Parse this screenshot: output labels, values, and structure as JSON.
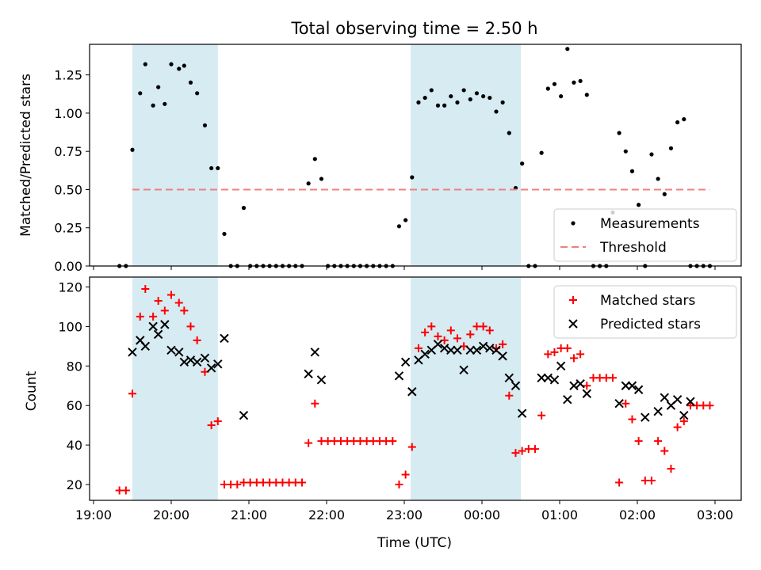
{
  "chart_data": [
    {
      "type": "scatter",
      "title": "Total observing time = 2.50 h",
      "xlabel": "",
      "ylabel": "Matched/Predicted stars",
      "ylim": [
        0,
        1.45
      ],
      "yticks": [
        0.0,
        0.25,
        0.5,
        0.75,
        1.0,
        1.25
      ],
      "ytick_labels": [
        "0.00",
        "0.25",
        "0.50",
        "0.75",
        "1.00",
        "1.25"
      ],
      "shaded_intervals": [
        [
          "19:30",
          "20:36"
        ],
        [
          "23:05",
          "00:30"
        ]
      ],
      "legend_position": "lower right",
      "series": [
        {
          "name": "Measurements",
          "marker": "dot",
          "color": "#000000",
          "points": [
            [
              "19:20",
              0.0
            ],
            [
              "19:25",
              0.0
            ],
            [
              "19:30",
              0.76
            ],
            [
              "19:36",
              1.13
            ],
            [
              "19:40",
              1.32
            ],
            [
              "19:46",
              1.05
            ],
            [
              "19:50",
              1.17
            ],
            [
              "19:55",
              1.06
            ],
            [
              "20:00",
              1.32
            ],
            [
              "20:06",
              1.29
            ],
            [
              "20:10",
              1.31
            ],
            [
              "20:15",
              1.2
            ],
            [
              "20:20",
              1.13
            ],
            [
              "20:26",
              0.92
            ],
            [
              "20:31",
              0.64
            ],
            [
              "20:36",
              0.64
            ],
            [
              "20:41",
              0.21
            ],
            [
              "20:46",
              0.0
            ],
            [
              "20:51",
              0.0
            ],
            [
              "20:56",
              0.38
            ],
            [
              "21:01",
              0.0
            ],
            [
              "21:06",
              0.0
            ],
            [
              "21:11",
              0.0
            ],
            [
              "21:16",
              0.0
            ],
            [
              "21:21",
              0.0
            ],
            [
              "21:26",
              0.0
            ],
            [
              "21:31",
              0.0
            ],
            [
              "21:36",
              0.0
            ],
            [
              "21:41",
              0.0
            ],
            [
              "21:46",
              0.54
            ],
            [
              "21:51",
              0.7
            ],
            [
              "21:56",
              0.57
            ],
            [
              "22:01",
              0.0
            ],
            [
              "22:06",
              0.0
            ],
            [
              "22:11",
              0.0
            ],
            [
              "22:16",
              0.0
            ],
            [
              "22:21",
              0.0
            ],
            [
              "22:26",
              0.0
            ],
            [
              "22:31",
              0.0
            ],
            [
              "22:36",
              0.0
            ],
            [
              "22:41",
              0.0
            ],
            [
              "22:46",
              0.0
            ],
            [
              "22:51",
              0.0
            ],
            [
              "22:56",
              0.26
            ],
            [
              "23:01",
              0.3
            ],
            [
              "23:06",
              0.58
            ],
            [
              "23:11",
              1.07
            ],
            [
              "23:16",
              1.1
            ],
            [
              "23:21",
              1.15
            ],
            [
              "23:26",
              1.05
            ],
            [
              "23:31",
              1.05
            ],
            [
              "23:36",
              1.11
            ],
            [
              "23:41",
              1.07
            ],
            [
              "23:46",
              1.15
            ],
            [
              "23:51",
              1.09
            ],
            [
              "23:56",
              1.13
            ],
            [
              "00:01",
              1.11
            ],
            [
              "00:06",
              1.1
            ],
            [
              "00:11",
              1.01
            ],
            [
              "00:16",
              1.07
            ],
            [
              "00:21",
              0.87
            ],
            [
              "00:26",
              0.51
            ],
            [
              "00:31",
              0.67
            ],
            [
              "00:36",
              0.0
            ],
            [
              "00:41",
              0.0
            ],
            [
              "00:46",
              0.74
            ],
            [
              "00:51",
              1.16
            ],
            [
              "00:56",
              1.19
            ],
            [
              "01:01",
              1.11
            ],
            [
              "01:06",
              1.42
            ],
            [
              "01:11",
              1.2
            ],
            [
              "01:16",
              1.21
            ],
            [
              "01:21",
              1.12
            ],
            [
              "01:26",
              0.0
            ],
            [
              "01:31",
              0.0
            ],
            [
              "01:36",
              0.0
            ],
            [
              "01:41",
              0.35
            ],
            [
              "01:46",
              0.87
            ],
            [
              "01:51",
              0.75
            ],
            [
              "01:56",
              0.62
            ],
            [
              "02:01",
              0.4
            ],
            [
              "02:06",
              0.0
            ],
            [
              "02:11",
              0.73
            ],
            [
              "02:16",
              0.57
            ],
            [
              "02:21",
              0.47
            ],
            [
              "02:26",
              0.77
            ],
            [
              "02:31",
              0.94
            ],
            [
              "02:36",
              0.96
            ],
            [
              "02:41",
              0.0
            ],
            [
              "02:46",
              0.0
            ],
            [
              "02:51",
              0.0
            ],
            [
              "02:56",
              0.0
            ]
          ]
        },
        {
          "name": "Threshold",
          "marker": "dashed-line",
          "color": "#f08080",
          "points": [
            [
              "19:30",
              0.5
            ],
            [
              "02:56",
              0.5
            ]
          ]
        }
      ]
    },
    {
      "type": "scatter",
      "title": "",
      "xlabel": "Time (UTC)",
      "ylabel": "Count",
      "ylim": [
        12,
        125
      ],
      "yticks": [
        20,
        40,
        60,
        80,
        100,
        120
      ],
      "ytick_labels": [
        "20",
        "40",
        "60",
        "80",
        "100",
        "120"
      ],
      "xticks": [
        "19:00",
        "20:00",
        "21:00",
        "22:00",
        "23:00",
        "00:00",
        "01:00",
        "02:00",
        "03:00"
      ],
      "shaded_intervals": [
        [
          "19:30",
          "20:36"
        ],
        [
          "23:05",
          "00:30"
        ]
      ],
      "legend_position": "upper right",
      "series": [
        {
          "name": "Matched stars",
          "marker": "plus",
          "color": "#ff0000",
          "points": [
            [
              "19:20",
              17
            ],
            [
              "19:25",
              17
            ],
            [
              "19:30",
              66
            ],
            [
              "19:36",
              105
            ],
            [
              "19:40",
              119
            ],
            [
              "19:46",
              105
            ],
            [
              "19:50",
              113
            ],
            [
              "19:55",
              108
            ],
            [
              "20:00",
              116
            ],
            [
              "20:06",
              112
            ],
            [
              "20:10",
              108
            ],
            [
              "20:15",
              100
            ],
            [
              "20:20",
              93
            ],
            [
              "20:26",
              77
            ],
            [
              "20:31",
              50
            ],
            [
              "20:36",
              52
            ],
            [
              "20:41",
              20
            ],
            [
              "20:46",
              20
            ],
            [
              "20:51",
              20
            ],
            [
              "20:56",
              21
            ],
            [
              "21:01",
              21
            ],
            [
              "21:06",
              21
            ],
            [
              "21:11",
              21
            ],
            [
              "21:16",
              21
            ],
            [
              "21:21",
              21
            ],
            [
              "21:26",
              21
            ],
            [
              "21:31",
              21
            ],
            [
              "21:36",
              21
            ],
            [
              "21:41",
              21
            ],
            [
              "21:46",
              41
            ],
            [
              "21:51",
              61
            ],
            [
              "21:56",
              42
            ],
            [
              "22:01",
              42
            ],
            [
              "22:06",
              42
            ],
            [
              "22:11",
              42
            ],
            [
              "22:16",
              42
            ],
            [
              "22:21",
              42
            ],
            [
              "22:26",
              42
            ],
            [
              "22:31",
              42
            ],
            [
              "22:36",
              42
            ],
            [
              "22:41",
              42
            ],
            [
              "22:46",
              42
            ],
            [
              "22:51",
              42
            ],
            [
              "22:56",
              20
            ],
            [
              "23:01",
              25
            ],
            [
              "23:06",
              39
            ],
            [
              "23:11",
              89
            ],
            [
              "23:16",
              97
            ],
            [
              "23:21",
              100
            ],
            [
              "23:26",
              95
            ],
            [
              "23:31",
              93
            ],
            [
              "23:36",
              98
            ],
            [
              "23:41",
              94
            ],
            [
              "23:46",
              90
            ],
            [
              "23:51",
              96
            ],
            [
              "23:56",
              100
            ],
            [
              "00:01",
              100
            ],
            [
              "00:06",
              98
            ],
            [
              "00:11",
              89
            ],
            [
              "00:16",
              91
            ],
            [
              "00:21",
              65
            ],
            [
              "00:26",
              36
            ],
            [
              "00:31",
              37
            ],
            [
              "00:36",
              38
            ],
            [
              "00:41",
              38
            ],
            [
              "00:46",
              55
            ],
            [
              "00:51",
              86
            ],
            [
              "00:56",
              87
            ],
            [
              "01:01",
              89
            ],
            [
              "01:06",
              89
            ],
            [
              "01:11",
              84
            ],
            [
              "01:16",
              86
            ],
            [
              "01:21",
              70
            ],
            [
              "01:26",
              74
            ],
            [
              "01:31",
              74
            ],
            [
              "01:36",
              74
            ],
            [
              "01:41",
              74
            ],
            [
              "01:46",
              21
            ],
            [
              "01:51",
              61
            ],
            [
              "01:56",
              53
            ],
            [
              "02:01",
              42
            ],
            [
              "02:06",
              22
            ],
            [
              "02:11",
              22
            ],
            [
              "02:16",
              42
            ],
            [
              "02:21",
              37
            ],
            [
              "02:26",
              28
            ],
            [
              "02:31",
              49
            ],
            [
              "02:36",
              52
            ],
            [
              "02:41",
              60
            ],
            [
              "02:46",
              60
            ],
            [
              "02:51",
              60
            ],
            [
              "02:56",
              60
            ]
          ]
        },
        {
          "name": "Predicted stars",
          "marker": "cross",
          "color": "#000000",
          "points": [
            [
              "19:30",
              87
            ],
            [
              "19:36",
              93
            ],
            [
              "19:40",
              90
            ],
            [
              "19:46",
              100
            ],
            [
              "19:50",
              96
            ],
            [
              "19:55",
              101
            ],
            [
              "20:00",
              88
            ],
            [
              "20:06",
              87
            ],
            [
              "20:10",
              82
            ],
            [
              "20:15",
              83
            ],
            [
              "20:20",
              82
            ],
            [
              "20:26",
              84
            ],
            [
              "20:31",
              79
            ],
            [
              "20:36",
              81
            ],
            [
              "20:41",
              94
            ],
            [
              "20:56",
              55
            ],
            [
              "21:46",
              76
            ],
            [
              "21:51",
              87
            ],
            [
              "21:56",
              73
            ],
            [
              "22:56",
              75
            ],
            [
              "23:01",
              82
            ],
            [
              "23:06",
              67
            ],
            [
              "23:11",
              83
            ],
            [
              "23:16",
              86
            ],
            [
              "23:21",
              88
            ],
            [
              "23:26",
              91
            ],
            [
              "23:31",
              89
            ],
            [
              "23:36",
              88
            ],
            [
              "23:41",
              88
            ],
            [
              "23:46",
              78
            ],
            [
              "23:51",
              88
            ],
            [
              "23:56",
              88
            ],
            [
              "00:01",
              90
            ],
            [
              "00:06",
              89
            ],
            [
              "00:11",
              88
            ],
            [
              "00:16",
              85
            ],
            [
              "00:21",
              74
            ],
            [
              "00:26",
              70
            ],
            [
              "00:31",
              56
            ],
            [
              "00:46",
              74
            ],
            [
              "00:51",
              74
            ],
            [
              "00:56",
              73
            ],
            [
              "01:01",
              80
            ],
            [
              "01:06",
              63
            ],
            [
              "01:11",
              70
            ],
            [
              "01:16",
              71
            ],
            [
              "01:21",
              66
            ],
            [
              "01:46",
              61
            ],
            [
              "01:51",
              70
            ],
            [
              "01:56",
              70
            ],
            [
              "02:01",
              68
            ],
            [
              "02:06",
              54
            ],
            [
              "02:16",
              57
            ],
            [
              "02:21",
              64
            ],
            [
              "02:26",
              60
            ],
            [
              "02:31",
              63
            ],
            [
              "02:36",
              55
            ],
            [
              "02:41",
              62
            ]
          ]
        }
      ]
    }
  ]
}
